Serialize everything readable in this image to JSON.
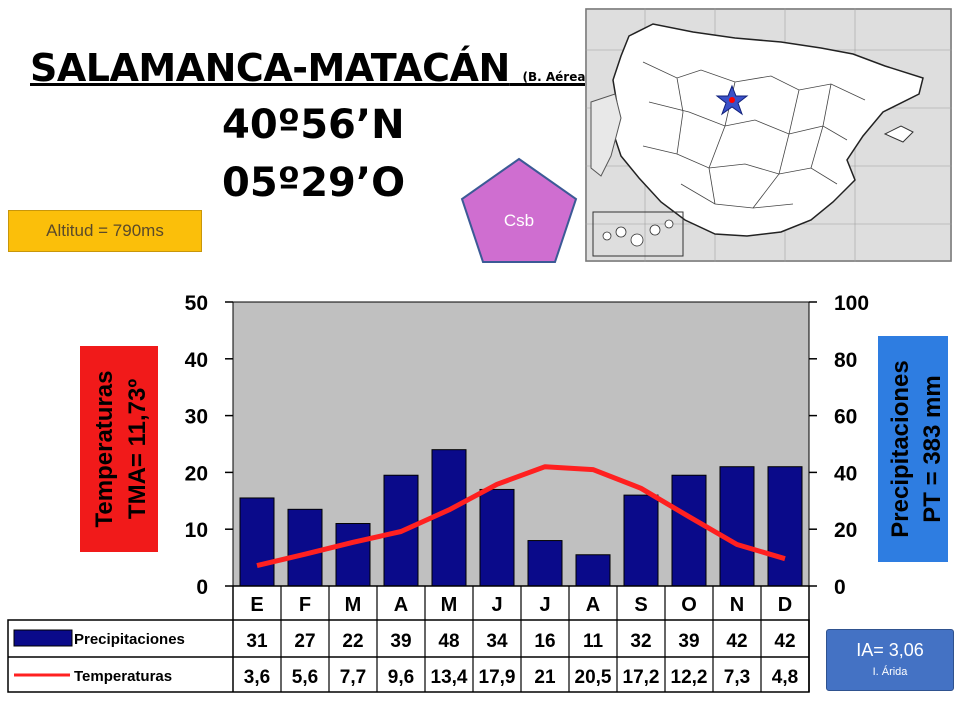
{
  "header": {
    "title": "SALAMANCA-MATACÁN",
    "title_note": "(B. Aérea)",
    "latitude": "40º56’N",
    "longitude": "05º29’O",
    "altitude": "Altitud = 790ms",
    "climate_code": "Csb"
  },
  "index": {
    "value": "IA= 3,06",
    "label": "I. Árida"
  },
  "colors": {
    "precip_bar": "#0a0a8a",
    "temp_line": "#ff2020",
    "plot_bg": "#c0c0c0",
    "temp_box": "#f11a1a",
    "precip_box": "#2e7de1",
    "pentagon": "#cf6ed0",
    "altitude_box": "#fbbf0a",
    "index_box": "#4472c4"
  },
  "map": {
    "marker": "star-icon"
  },
  "chart_data": {
    "type": "bar",
    "categories": [
      "E",
      "F",
      "M",
      "A",
      "M",
      "J",
      "J",
      "A",
      "S",
      "O",
      "N",
      "D"
    ],
    "series": [
      {
        "name": "Precipitaciones",
        "type": "bar",
        "axis": "right",
        "values": [
          31,
          27,
          22,
          39,
          48,
          34,
          16,
          11,
          32,
          39,
          42,
          42
        ]
      },
      {
        "name": "Temperaturas",
        "type": "line",
        "axis": "left",
        "values": [
          3.6,
          5.6,
          7.7,
          9.6,
          13.4,
          17.9,
          21,
          20.5,
          17.2,
          12.2,
          7.3,
          4.8
        ]
      }
    ],
    "table_precip": [
      "31",
      "27",
      "22",
      "39",
      "48",
      "34",
      "16",
      "11",
      "32",
      "39",
      "42",
      "42"
    ],
    "table_temp": [
      "3,6",
      "5,6",
      "7,7",
      "9,6",
      "13,4",
      "17,9",
      "21",
      "20,5",
      "17,2",
      "12,2",
      "7,3",
      "4,8"
    ],
    "left_axis": {
      "label": "Temperaturas",
      "sublabel": "TMA= 11,73º",
      "ylim": [
        0,
        50
      ],
      "ticks": [
        "0",
        "10",
        "20",
        "30",
        "40",
        "50"
      ]
    },
    "right_axis": {
      "label": "Precipitaciones",
      "sublabel": "PT = 383 mm",
      "ylim": [
        0,
        100
      ],
      "ticks": [
        "0",
        "20",
        "40",
        "60",
        "80",
        "100"
      ]
    },
    "grid": false
  }
}
